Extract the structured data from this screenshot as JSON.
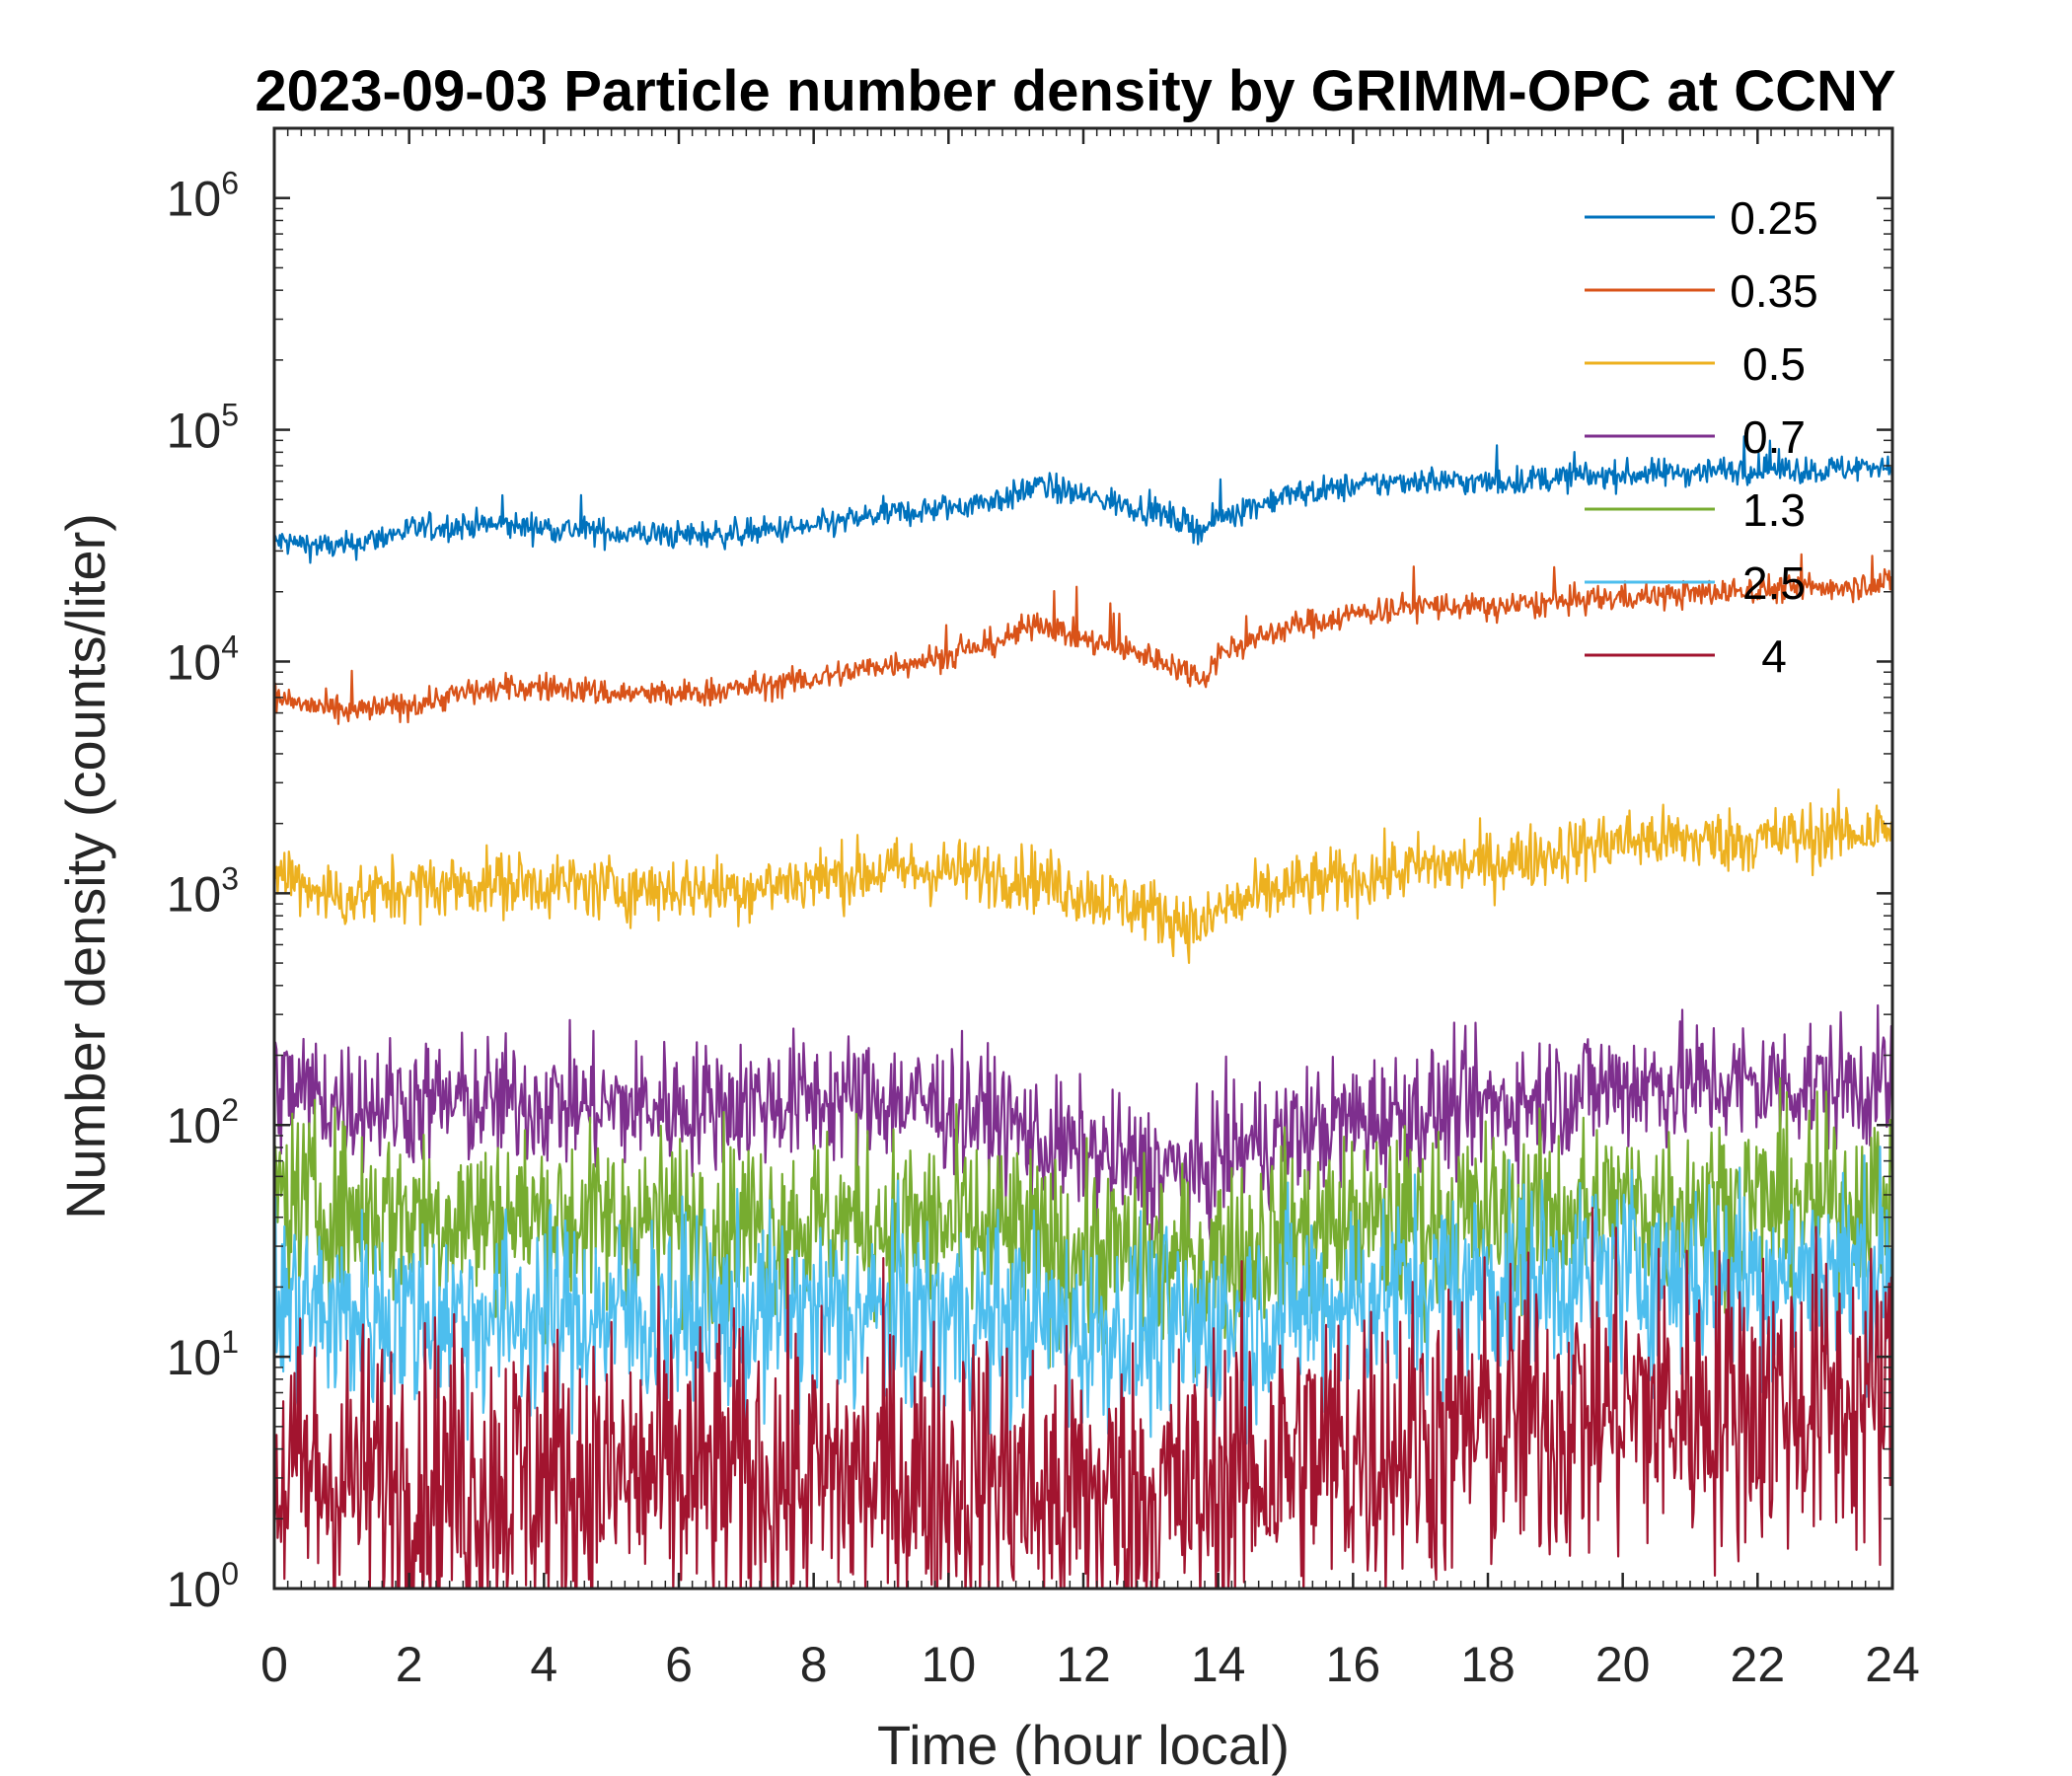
{
  "chart_data": {
    "type": "line",
    "title": "2023-09-03 Particle number density by GRIMM-OPC at CCNY",
    "xlabel": "Time (hour local)",
    "ylabel": "Number density (counts/liter)",
    "xlim": [
      0,
      24
    ],
    "ylim": [
      1,
      2000000
    ],
    "yscale": "log",
    "xticks": [
      0,
      2,
      4,
      6,
      8,
      10,
      12,
      14,
      16,
      18,
      20,
      22,
      24
    ],
    "xtick_labels": [
      "0",
      "2",
      "4",
      "6",
      "8",
      "10",
      "12",
      "14",
      "16",
      "18",
      "20",
      "22",
      "24"
    ],
    "yticks": [
      1,
      10,
      100,
      1000,
      10000,
      100000,
      1000000
    ],
    "ytick_labels": [
      {
        "base": "10",
        "exp": "0"
      },
      {
        "base": "10",
        "exp": "1"
      },
      {
        "base": "10",
        "exp": "2"
      },
      {
        "base": "10",
        "exp": "3"
      },
      {
        "base": "10",
        "exp": "4"
      },
      {
        "base": "10",
        "exp": "5"
      },
      {
        "base": "10",
        "exp": "6"
      }
    ],
    "legend_position": "top-right",
    "x": [
      0,
      1,
      2,
      3,
      4,
      5,
      6,
      7,
      8,
      9,
      10,
      11,
      11.3,
      12,
      13,
      13.8,
      14,
      15,
      16,
      17,
      18,
      19,
      20,
      21,
      22,
      23,
      24
    ],
    "series": [
      {
        "name": "0.25",
        "label": "0.25",
        "color": "#0072BD",
        "noise": 0.03,
        "values": [
          33000,
          31000,
          37000,
          39000,
          38000,
          36000,
          35000,
          36000,
          38000,
          43000,
          46000,
          52000,
          58000,
          52000,
          45000,
          37000,
          42000,
          52000,
          57000,
          61000,
          59000,
          62000,
          64000,
          66000,
          68000,
          67000,
          71000
        ]
      },
      {
        "name": "0.35",
        "label": "0.35",
        "color": "#D95319",
        "noise": 0.03,
        "values": [
          7000,
          6000,
          6500,
          7500,
          7800,
          7300,
          7200,
          7700,
          8400,
          9600,
          10500,
          13000,
          15000,
          12500,
          10500,
          8500,
          10800,
          14000,
          16000,
          17500,
          17000,
          18000,
          19000,
          19500,
          20500,
          21000,
          22000
        ]
      },
      {
        "name": "0.5",
        "label": "0.5",
        "color": "#EDB120",
        "noise": 0.07,
        "values": [
          1250,
          950,
          1050,
          1100,
          1100,
          1050,
          1050,
          1050,
          1150,
          1250,
          1250,
          1200,
          1150,
          1000,
          850,
          700,
          850,
          1050,
          1150,
          1300,
          1350,
          1500,
          1700,
          1700,
          1700,
          1800,
          1900
        ]
      },
      {
        "name": "0.7",
        "label": "0.7",
        "color": "#7E2F8E",
        "noise": 0.14,
        "values": [
          150,
          125,
          125,
          125,
          125,
          120,
          120,
          125,
          130,
          130,
          120,
          100,
          85,
          75,
          65,
          60,
          75,
          90,
          105,
          115,
          120,
          135,
          150,
          150,
          150,
          150,
          150
        ]
      },
      {
        "name": "1.3",
        "label": "1.3",
        "color": "#77AC30",
        "noise": 0.2,
        "values": [
          50,
          42,
          42,
          40,
          40,
          38,
          38,
          38,
          38,
          38,
          36,
          34,
          30,
          28,
          26,
          25,
          28,
          34,
          36,
          38,
          40,
          42,
          44,
          46,
          46,
          46,
          46
        ]
      },
      {
        "name": "2.5",
        "label": "2.5",
        "color": "#4DBEEE",
        "noise": 0.22,
        "values": [
          17,
          15,
          15,
          15,
          15,
          15,
          15,
          15,
          15,
          15,
          15,
          14,
          14,
          13,
          13,
          13,
          14,
          16,
          18,
          20,
          21,
          22,
          23,
          23,
          23,
          24,
          24
        ]
      },
      {
        "name": "4",
        "label": "4",
        "color": "#A2142F",
        "noise": 0.34,
        "values": [
          3,
          3,
          3,
          3,
          3,
          3,
          3,
          3,
          3,
          3,
          3,
          3,
          2.5,
          2.5,
          2.5,
          2.5,
          3,
          3.5,
          4,
          4.5,
          5,
          5.5,
          6,
          6,
          6.5,
          6.5,
          6.5
        ]
      }
    ]
  }
}
